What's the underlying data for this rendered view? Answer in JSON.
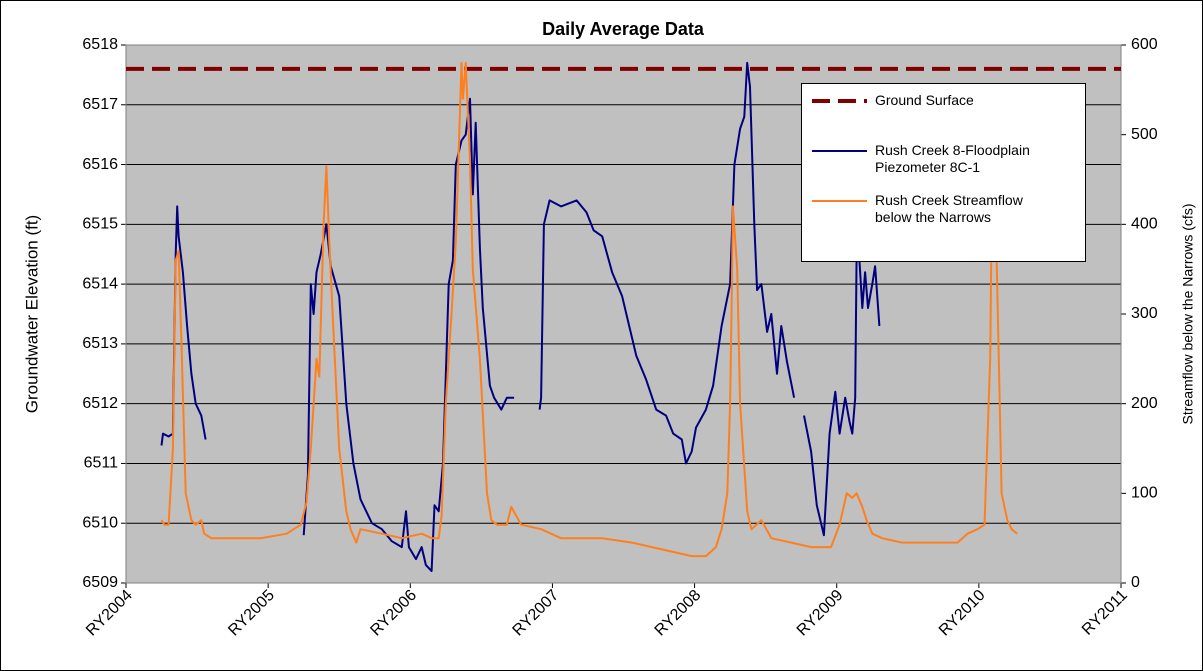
{
  "chart_data": {
    "type": "line",
    "title": "Daily Average Data",
    "y_label": "Groundwater Elevation (ft)",
    "y2_label": "Streamflow below the Narrows (cfs)",
    "xlim": [
      2004,
      2011
    ],
    "xticks": [
      {
        "value": 2004,
        "label": "RY2004"
      },
      {
        "value": 2005,
        "label": "RY2005"
      },
      {
        "value": 2006,
        "label": "RY2006"
      },
      {
        "value": 2007,
        "label": "RY2007"
      },
      {
        "value": 2008,
        "label": "RY2008"
      },
      {
        "value": 2009,
        "label": "RY2009"
      },
      {
        "value": 2010,
        "label": "RY2010"
      },
      {
        "value": 2011,
        "label": "RY2011"
      }
    ],
    "ylim": [
      6509,
      6518
    ],
    "yticks": [
      6509,
      6510,
      6511,
      6512,
      6513,
      6514,
      6515,
      6516,
      6517,
      6518
    ],
    "y2lim": [
      0,
      600
    ],
    "y2ticks": [
      0,
      100,
      200,
      300,
      400,
      500,
      600
    ],
    "grid": true,
    "legend": "upper right",
    "reference_line": {
      "name": "Ground Surface",
      "value": 6517.6,
      "color": "#800000"
    },
    "series": [
      {
        "name": "Rush Creek 8-Floodplain Piezometer 8C-1",
        "color": "#000080",
        "x": [
          2004.25,
          2004.26,
          2004.3,
          2004.33,
          2004.35,
          2004.36,
          2004.37,
          2004.4,
          2004.43,
          2004.46,
          2004.49,
          2004.53,
          2004.56,
          2004.9,
          2005.25,
          2005.28,
          2005.3,
          2005.32,
          2005.34,
          2005.37,
          2005.41,
          2005.44,
          2005.5,
          2005.55,
          2005.6,
          2005.65,
          2005.73,
          2005.8,
          2005.87,
          2005.94,
          2005.97,
          2005.99,
          2006.04,
          2006.08,
          2006.11,
          2006.15,
          2006.17,
          2006.2,
          2006.23,
          2006.27,
          2006.3,
          2006.32,
          2006.36,
          2006.39,
          2006.42,
          2006.44,
          2006.46,
          2006.49,
          2006.51,
          2006.56,
          2006.59,
          2006.64,
          2006.68,
          2006.73,
          2006.8,
          2006.91,
          2006.92,
          2006.94,
          2006.98,
          2007.06,
          2007.17,
          2007.24,
          2007.29,
          2007.35,
          2007.42,
          2007.49,
          2007.54,
          2007.59,
          2007.66,
          2007.73,
          2007.8,
          2007.85,
          2007.91,
          2007.94,
          2007.98,
          2008.01,
          2008.08,
          2008.13,
          2008.19,
          2008.25,
          2008.28,
          2008.32,
          2008.35,
          2008.37,
          2008.39,
          2008.42,
          2008.44,
          2008.47,
          2008.51,
          2008.54,
          2008.58,
          2008.61,
          2008.65,
          2008.7,
          2008.74,
          2008.77,
          2008.82,
          2008.86,
          2008.91,
          2008.95,
          2008.99,
          2009.02,
          2009.06,
          2009.09,
          2009.11,
          2009.13,
          2009.14,
          2009.15,
          2009.18,
          2009.2,
          2009.22,
          2009.25,
          2009.27,
          2009.3
        ],
        "values": [
          6511.3,
          6511.5,
          6511.45,
          6511.5,
          6514.5,
          6515.3,
          6514.8,
          6514.2,
          6513.3,
          6512.5,
          6512,
          6511.8,
          6511.4,
          null,
          6509.8,
          6510.8,
          6514,
          6513.5,
          6514.2,
          6514.5,
          6515,
          6514.3,
          6513.8,
          6512,
          6511,
          6510.4,
          6510,
          6509.9,
          6509.7,
          6509.6,
          6510.2,
          6509.6,
          6509.4,
          6509.6,
          6509.3,
          6509.2,
          6510.3,
          6510.2,
          6511,
          6514,
          6514.4,
          6516,
          6516.4,
          6516.5,
          6517.1,
          6515.5,
          6516.7,
          6514.6,
          6513.6,
          6512.3,
          6512.1,
          6511.9,
          6512.1,
          6512.1,
          null,
          6511.9,
          6512.1,
          6515,
          6515.4,
          6515.3,
          6515.4,
          6515.2,
          6514.9,
          6514.8,
          6514.2,
          6513.8,
          6513.3,
          6512.8,
          6512.4,
          6511.9,
          6511.8,
          6511.5,
          6511.4,
          6511.0,
          6511.2,
          6511.6,
          6511.9,
          6512.3,
          6513.3,
          6514,
          6516,
          6516.6,
          6516.8,
          6517.7,
          6517.3,
          6515,
          6513.9,
          6514,
          6513.2,
          6513.5,
          6512.5,
          6513.3,
          6512.7,
          6512.1,
          null,
          6511.8,
          6511.2,
          6510.3,
          6509.8,
          6511.5,
          6512.2,
          6511.5,
          6512.1,
          6511.7,
          6511.5,
          6512.1,
          6514.5,
          6514.8,
          6513.6,
          6514.2,
          6513.6,
          6514,
          6514.3,
          6513.3
        ]
      },
      {
        "name": "Rush Creek Streamflow below the Narrows",
        "color": "#ff7f1e",
        "axis": "y2",
        "x": [
          2004.25,
          2004.27,
          2004.3,
          2004.33,
          2004.35,
          2004.37,
          2004.39,
          2004.42,
          2004.46,
          2004.49,
          2004.53,
          2004.55,
          2004.6,
          2004.74,
          2004.95,
          2005.13,
          2005.23,
          2005.27,
          2005.3,
          2005.34,
          2005.36,
          2005.39,
          2005.41,
          2005.43,
          2005.46,
          2005.5,
          2005.55,
          2005.58,
          2005.62,
          2005.65,
          2005.8,
          2005.94,
          2006.08,
          2006.15,
          2006.2,
          2006.22,
          2006.25,
          2006.29,
          2006.32,
          2006.36,
          2006.37,
          2006.39,
          2006.42,
          2006.44,
          2006.49,
          2006.54,
          2006.57,
          2006.61,
          2006.68,
          2006.71,
          2006.78,
          2006.92,
          2007.06,
          2007.2,
          2007.35,
          2007.56,
          2007.7,
          2007.84,
          2007.98,
          2008.08,
          2008.15,
          2008.19,
          2008.23,
          2008.25,
          2008.26,
          2008.27,
          2008.3,
          2008.32,
          2008.37,
          2008.4,
          2008.47,
          2008.54,
          2008.68,
          2008.82,
          2008.96,
          2009.02,
          2009.07,
          2009.11,
          2009.14,
          2009.18,
          2009.21,
          2009.25,
          2009.32,
          2009.46,
          2009.74,
          2009.85,
          2009.92,
          2009.99,
          2010.04,
          2010.08,
          2010.09,
          2010.11,
          2010.14,
          2010.16,
          2010.2,
          2010.23,
          2010.27
        ],
        "values": [
          70,
          65,
          65,
          150,
          360,
          370,
          270,
          100,
          70,
          65,
          70,
          55,
          50,
          50,
          50,
          55,
          65,
          90,
          150,
          250,
          230,
          400,
          465,
          380,
          280,
          150,
          80,
          60,
          45,
          60,
          55,
          50,
          55,
          50,
          50,
          75,
          200,
          300,
          380,
          580,
          540,
          580,
          470,
          350,
          250,
          100,
          70,
          65,
          65,
          85,
          65,
          60,
          50,
          50,
          50,
          45,
          40,
          35,
          30,
          30,
          40,
          60,
          100,
          200,
          300,
          420,
          350,
          200,
          80,
          60,
          70,
          50,
          45,
          40,
          40,
          65,
          100,
          95,
          100,
          85,
          70,
          55,
          50,
          45,
          45,
          45,
          55,
          60,
          65,
          250,
          400,
          470,
          250,
          100,
          70,
          60,
          55
        ]
      }
    ]
  }
}
